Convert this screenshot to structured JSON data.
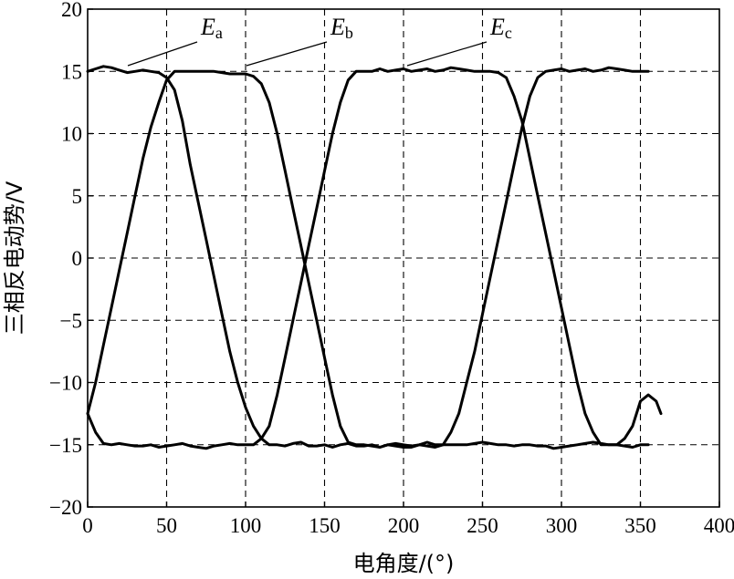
{
  "chart_data": {
    "type": "line",
    "title": "",
    "xlabel": "电角度/(°)",
    "ylabel": "三相反电动势/V",
    "xlim": [
      0,
      400
    ],
    "ylim": [
      -20,
      20
    ],
    "xticks": [
      0,
      50,
      100,
      150,
      200,
      250,
      300,
      350,
      400
    ],
    "yticks": [
      -20,
      -15,
      -10,
      -5,
      0,
      5,
      10,
      15,
      20
    ],
    "grid": true,
    "series": [
      {
        "name": "Ea",
        "label_main": "E",
        "label_sub": "a",
        "x": [
          0,
          5,
          10,
          15,
          20,
          25,
          30,
          35,
          40,
          45,
          50,
          55,
          60,
          65,
          70,
          75,
          80,
          85,
          90,
          95,
          100,
          105,
          110,
          115,
          120,
          125,
          130,
          135,
          140,
          145,
          150,
          155,
          160,
          165,
          170,
          175,
          180,
          185,
          190,
          195,
          200,
          205,
          210,
          215,
          220,
          225,
          230,
          235,
          240,
          245,
          250,
          255,
          260,
          265,
          270,
          275,
          280,
          285,
          290,
          295,
          300,
          305,
          310,
          315,
          320,
          325,
          330,
          335,
          340,
          345,
          350,
          355,
          360,
          363
        ],
        "y": [
          15,
          15.2,
          15.4,
          15.3,
          15.1,
          14.9,
          15,
          15.1,
          15,
          14.9,
          14.5,
          13.5,
          11,
          7.5,
          4.5,
          1.5,
          -1.5,
          -4.5,
          -7.5,
          -10,
          -12,
          -13.5,
          -14.5,
          -15,
          -15,
          -15.1,
          -14.9,
          -14.8,
          -15.1,
          -15.1,
          -15,
          -15.2,
          -15,
          -14.9,
          -15.1,
          -15.1,
          -15,
          -15.2,
          -15,
          -14.9,
          -15,
          -15.1,
          -15,
          -14.8,
          -15,
          -15,
          -14,
          -12.5,
          -10,
          -7.5,
          -4.5,
          -1.5,
          1.5,
          4.5,
          7.5,
          10.5,
          13,
          14.5,
          15,
          15.1,
          15.2,
          15,
          15.1,
          15.2,
          15,
          15.1,
          15.3,
          15.2,
          15.1,
          15,
          15,
          15,
          null,
          null
        ]
      },
      {
        "name": "Eb",
        "label_main": "E",
        "label_sub": "b",
        "x": [
          0,
          5,
          10,
          15,
          20,
          25,
          30,
          35,
          40,
          45,
          50,
          55,
          60,
          65,
          70,
          75,
          80,
          85,
          90,
          95,
          100,
          105,
          110,
          115,
          120,
          125,
          130,
          135,
          140,
          145,
          150,
          155,
          160,
          165,
          170,
          175,
          180,
          185,
          190,
          195,
          200,
          205,
          210,
          215,
          220,
          225,
          230,
          235,
          240,
          245,
          250,
          255,
          260,
          265,
          270,
          275,
          280,
          285,
          290,
          295,
          300,
          305,
          310,
          315,
          320,
          325,
          330,
          335,
          340,
          345,
          350,
          355,
          360,
          363
        ],
        "y": [
          -12.5,
          -14,
          -14.9,
          -15,
          -14.9,
          -15,
          -15.1,
          -15.1,
          -15,
          -15.2,
          -15.1,
          -15,
          -14.9,
          -15.1,
          -15.2,
          -15.3,
          -15.1,
          -15,
          -14.9,
          -15,
          -15,
          -15,
          -14.5,
          -13.5,
          -11,
          -8,
          -5,
          -2,
          1,
          4,
          7,
          10,
          12.5,
          14.3,
          15,
          15,
          15,
          15.2,
          15,
          15.1,
          15.2,
          15,
          15.1,
          15.2,
          15,
          15.1,
          15.3,
          15.2,
          15.1,
          15,
          15,
          15,
          14.9,
          14.5,
          13,
          11,
          8,
          5,
          2,
          -1,
          -4,
          -7,
          -10,
          -12.5,
          -14,
          -15,
          -15,
          -15,
          -15.1,
          -15.2,
          -15,
          -15,
          null,
          null
        ]
      },
      {
        "name": "Ec",
        "label_main": "E",
        "label_sub": "c",
        "x": [
          0,
          5,
          10,
          15,
          20,
          25,
          30,
          35,
          40,
          45,
          50,
          55,
          60,
          65,
          70,
          75,
          80,
          85,
          90,
          95,
          100,
          105,
          110,
          115,
          120,
          125,
          130,
          135,
          140,
          145,
          150,
          155,
          160,
          165,
          170,
          175,
          180,
          185,
          190,
          195,
          200,
          205,
          210,
          215,
          220,
          225,
          230,
          235,
          240,
          245,
          250,
          255,
          260,
          265,
          270,
          275,
          280,
          285,
          290,
          295,
          300,
          305,
          310,
          315,
          320,
          325,
          330,
          335,
          340,
          345,
          350,
          355,
          360,
          363
        ],
        "y": [
          -12.5,
          -10,
          -7,
          -4,
          -1,
          2,
          5,
          8,
          10.5,
          12.5,
          14.3,
          15,
          15,
          15,
          15,
          15,
          15,
          14.9,
          14.8,
          14.8,
          14.8,
          14.6,
          14,
          12.5,
          10,
          7,
          4,
          1,
          -2,
          -5,
          -8,
          -11,
          -13.5,
          -14.8,
          -15,
          -15,
          -15.1,
          -15.2,
          -15,
          -15.1,
          -15.2,
          -15.2,
          -15,
          -15.1,
          -15.2,
          -15,
          -15,
          -15,
          -15,
          -14.9,
          -14.8,
          -14.9,
          -15,
          -15,
          -15.1,
          -15,
          -15,
          -15.1,
          -15.1,
          -15.3,
          -15.2,
          -15.1,
          -15,
          -14.9,
          -14.8,
          -14.9,
          -15,
          -15,
          -14.5,
          -13.5,
          -11.5,
          -11,
          -11.5,
          -12.5
        ]
      }
    ]
  }
}
